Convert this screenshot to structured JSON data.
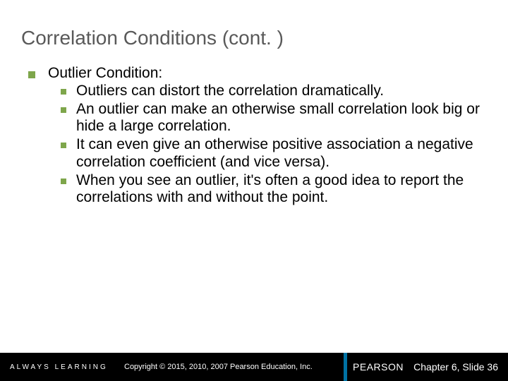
{
  "colors": {
    "bullet": "#7ea64b",
    "title_text": "#595959",
    "footer_bg": "#000000",
    "footer_text": "#ffffff",
    "pearson_bar": "#0073a5"
  },
  "title": "Correlation Conditions (cont. )",
  "main": {
    "heading": "Outlier Condition:",
    "items": [
      "Outliers can distort the correlation dramatically.",
      "An outlier can make an otherwise small correlation look big or hide a large correlation.",
      "It can even give an otherwise positive association a negative correlation coefficient (and vice versa).",
      "When you see an outlier, it's often a good idea to report the correlations with and without the point."
    ]
  },
  "footer": {
    "always": "ALWAYS LEARNING",
    "copyright": "Copyright © 2015, 2010, 2007 Pearson Education, Inc.",
    "brand": "PEARSON",
    "slide_ref": "Chapter 6, Slide 36"
  }
}
